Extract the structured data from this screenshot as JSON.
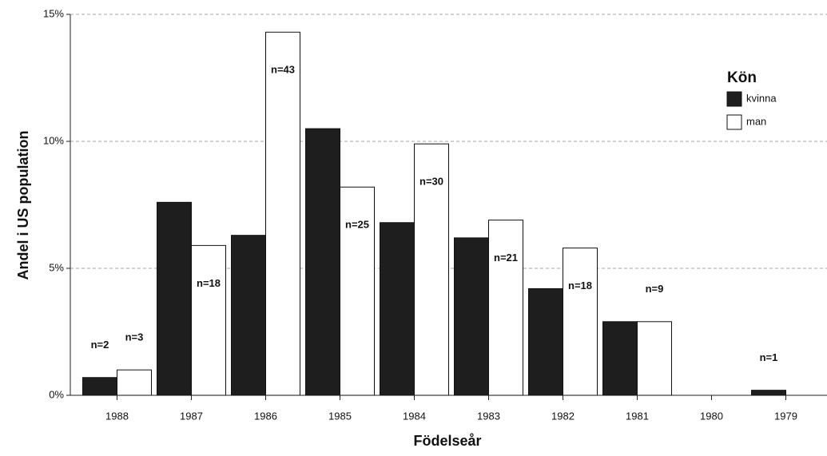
{
  "chart_data": {
    "type": "bar",
    "categories": [
      "1988",
      "1987",
      "1986",
      "1985",
      "1984",
      "1983",
      "1982",
      "1981",
      "1980",
      "1979"
    ],
    "series": [
      {
        "name": "kvinna",
        "color": "#1e1e1e",
        "values": [
          0.7,
          7.6,
          6.3,
          10.5,
          6.8,
          6.2,
          4.2,
          2.9,
          0,
          0.2
        ],
        "count_labels": [
          "n=2",
          null,
          null,
          null,
          null,
          null,
          null,
          null,
          null,
          "n=1"
        ]
      },
      {
        "name": "man",
        "color": "#ffffff",
        "values": [
          1.0,
          5.9,
          14.3,
          8.2,
          9.9,
          6.9,
          5.8,
          2.9,
          0,
          0
        ],
        "count_labels": [
          "n=3",
          "n=18",
          "n=43",
          "n=25",
          "n=30",
          "n=21",
          "n=18",
          "n=9",
          null,
          null
        ]
      }
    ],
    "legend_title": "Kön",
    "x_label": "Födelseår",
    "y_label": "Andel i US population",
    "ylim": [
      0,
      15
    ],
    "yticks": [
      {
        "value": 0,
        "label": "0%"
      },
      {
        "value": 5,
        "label": "5%"
      },
      {
        "value": 10,
        "label": "10%"
      },
      {
        "value": 15,
        "label": "15%"
      }
    ],
    "grid": true,
    "legend_position": "top-right"
  }
}
